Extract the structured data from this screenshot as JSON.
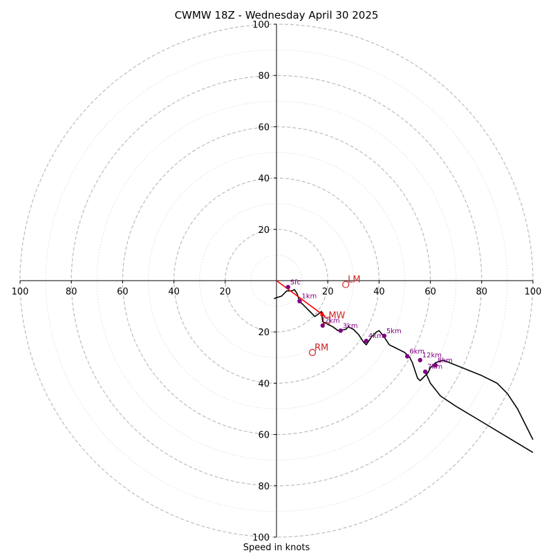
{
  "title": "CWMW 18Z - Wednesday April 30 2025",
  "xlabel": "Speed in knots",
  "colors": {
    "axis": "#000000",
    "ring_major": "#bbbbbb",
    "ring_minor": "#cccccc",
    "hodograph": "#000000",
    "height_marker": "#800080",
    "motion": "#cc2222",
    "mean_wind_arrow": "#ff0000"
  },
  "chart_data": {
    "type": "scatter",
    "xlim": [
      -100,
      100
    ],
    "ylim": [
      -100,
      100
    ],
    "grid": true,
    "major_rings": [
      20,
      40,
      60,
      80,
      100
    ],
    "minor_rings": [
      10,
      30,
      50,
      70,
      90
    ],
    "x_ticks": [
      {
        "v": -100,
        "label": "100"
      },
      {
        "v": -80,
        "label": "80"
      },
      {
        "v": -60,
        "label": "60"
      },
      {
        "v": -40,
        "label": "40"
      },
      {
        "v": -20,
        "label": "20"
      },
      {
        "v": 20,
        "label": "20"
      },
      {
        "v": 40,
        "label": "40"
      },
      {
        "v": 60,
        "label": "60"
      },
      {
        "v": 80,
        "label": "80"
      },
      {
        "v": 100,
        "label": "100"
      }
    ],
    "y_ticks": [
      {
        "v": 100,
        "label": "100"
      },
      {
        "v": 80,
        "label": "80"
      },
      {
        "v": 60,
        "label": "60"
      },
      {
        "v": 40,
        "label": "40"
      },
      {
        "v": 20,
        "label": "20"
      },
      {
        "v": -20,
        "label": "20"
      },
      {
        "v": -40,
        "label": "40"
      },
      {
        "v": -60,
        "label": "60"
      },
      {
        "v": -80,
        "label": "80"
      },
      {
        "v": -100,
        "label": "100"
      }
    ],
    "hodograph_line": [
      [
        -1,
        -7
      ],
      [
        2,
        -6
      ],
      [
        4,
        -4
      ],
      [
        6,
        -4
      ],
      [
        7,
        -3.5
      ],
      [
        8,
        -5
      ],
      [
        9,
        -8
      ],
      [
        11,
        -10
      ],
      [
        13,
        -12
      ],
      [
        15,
        -14
      ],
      [
        17,
        -12.5
      ],
      [
        17.5,
        -12
      ],
      [
        18,
        -16
      ],
      [
        20,
        -17
      ],
      [
        22,
        -18
      ],
      [
        24,
        -19.5
      ],
      [
        27,
        -19
      ],
      [
        28,
        -18
      ],
      [
        30,
        -19
      ],
      [
        32,
        -21
      ],
      [
        34,
        -24
      ],
      [
        35,
        -25
      ],
      [
        37,
        -22
      ],
      [
        39,
        -20
      ],
      [
        40,
        -19.5
      ],
      [
        42,
        -22
      ],
      [
        44,
        -25
      ],
      [
        46,
        -26
      ],
      [
        48,
        -27
      ],
      [
        50,
        -28
      ],
      [
        52,
        -30
      ],
      [
        53,
        -32
      ],
      [
        54,
        -35
      ],
      [
        55,
        -38
      ],
      [
        56,
        -39
      ],
      [
        57,
        -38
      ],
      [
        58,
        -37
      ],
      [
        59,
        -36
      ],
      [
        60,
        -34
      ],
      [
        62,
        -32
      ],
      [
        65,
        -31
      ],
      [
        70,
        -33
      ],
      [
        75,
        -35
      ],
      [
        80,
        -37
      ],
      [
        86,
        -40
      ],
      [
        90,
        -44
      ],
      [
        94,
        -50
      ],
      [
        100,
        -62
      ]
    ],
    "hodograph_tail": [
      [
        58,
        -35.5
      ],
      [
        60,
        -40
      ],
      [
        64,
        -45
      ],
      [
        70,
        -49
      ],
      [
        80,
        -55
      ],
      [
        90,
        -61
      ],
      [
        100,
        -67
      ]
    ],
    "height_points": [
      {
        "label": "Sfc",
        "x": 4.5,
        "y": -2.5
      },
      {
        "label": "1km",
        "x": 9,
        "y": -8
      },
      {
        "label": "2km",
        "x": 18,
        "y": -17.5
      },
      {
        "label": "3km",
        "x": 25,
        "y": -19.5
      },
      {
        "label": "4km",
        "x": 35,
        "y": -23.5
      },
      {
        "label": "5km",
        "x": 42,
        "y": -21.5
      },
      {
        "label": "6km",
        "x": 51,
        "y": -29.5
      },
      {
        "label": "7km",
        "x": 58,
        "y": -35.5
      },
      {
        "label": "8km",
        "x": 62,
        "y": -33
      },
      {
        "label": "12km",
        "x": 56,
        "y": -31
      }
    ],
    "storm_motion": [
      {
        "label": "LM",
        "x": 27,
        "y": -1.5
      },
      {
        "label": "RM",
        "x": 14,
        "y": -28
      }
    ],
    "mean_wind": {
      "label": "MW",
      "x": 19.5,
      "y": -15.5
    },
    "shear_arrow": {
      "from": [
        0,
        0
      ],
      "to": [
        19,
        -14
      ]
    }
  }
}
